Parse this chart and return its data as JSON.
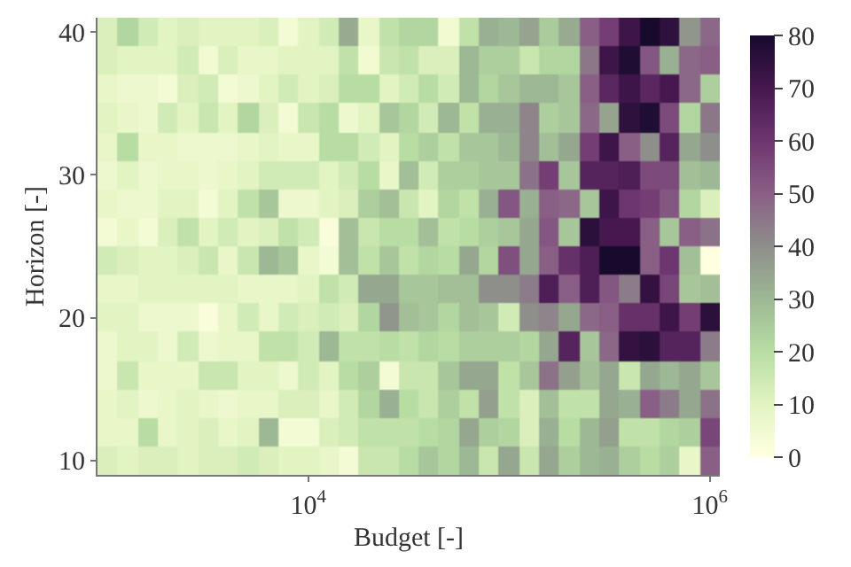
{
  "chart_data": {
    "type": "heatmap",
    "xlabel": "Budget [-]",
    "ylabel": "Horizon [-]",
    "log": "x",
    "x": [
      1000,
      1259,
      1585,
      1995,
      2512,
      3162,
      3981,
      5012,
      6310,
      7943,
      10000,
      12589,
      15849,
      19953,
      25119,
      31623,
      39811,
      50119,
      63096,
      79433,
      100000,
      125893,
      158489,
      199526,
      251189,
      316228,
      398107,
      501187,
      630957,
      794328,
      1000000
    ],
    "y_categories": [
      "40",
      null,
      null,
      null,
      null,
      "30",
      null,
      null,
      null,
      null,
      "20",
      null,
      null,
      null,
      null,
      "10"
    ],
    "cells": [
      [
        12,
        22,
        14,
        10,
        12,
        10,
        10,
        10,
        12,
        4,
        10,
        14,
        33,
        8,
        18,
        22,
        22,
        5,
        18,
        32,
        30,
        35,
        25,
        33,
        50,
        58,
        72,
        80,
        75,
        38,
        48
      ],
      [
        12,
        10,
        10,
        10,
        14,
        5,
        12,
        8,
        8,
        10,
        10,
        10,
        18,
        5,
        16,
        18,
        12,
        12,
        30,
        24,
        24,
        16,
        22,
        22,
        45,
        72,
        78,
        52,
        32,
        48,
        50
      ],
      [
        8,
        6,
        6,
        4,
        12,
        14,
        4,
        6,
        10,
        14,
        10,
        12,
        20,
        20,
        10,
        14,
        20,
        14,
        30,
        22,
        26,
        30,
        30,
        26,
        50,
        65,
        72,
        65,
        70,
        48,
        24
      ],
      [
        10,
        8,
        6,
        14,
        10,
        16,
        10,
        22,
        12,
        4,
        16,
        20,
        6,
        10,
        26,
        22,
        14,
        30,
        18,
        32,
        32,
        42,
        24,
        26,
        48,
        35,
        75,
        78,
        55,
        22,
        45
      ],
      [
        8,
        20,
        8,
        8,
        6,
        6,
        6,
        8,
        10,
        8,
        8,
        20,
        20,
        14,
        10,
        20,
        24,
        18,
        26,
        26,
        30,
        42,
        28,
        34,
        58,
        72,
        50,
        40,
        66,
        34,
        40
      ],
      [
        6,
        10,
        6,
        8,
        8,
        6,
        8,
        10,
        14,
        14,
        14,
        10,
        14,
        20,
        8,
        28,
        14,
        24,
        24,
        26,
        26,
        46,
        58,
        26,
        66,
        66,
        68,
        55,
        55,
        28,
        30
      ],
      [
        8,
        6,
        6,
        10,
        10,
        4,
        10,
        18,
        26,
        6,
        6,
        10,
        12,
        24,
        28,
        16,
        10,
        22,
        18,
        32,
        52,
        32,
        50,
        48,
        26,
        72,
        60,
        58,
        52,
        22,
        12
      ],
      [
        4,
        8,
        4,
        12,
        18,
        10,
        14,
        10,
        12,
        18,
        14,
        2,
        28,
        16,
        20,
        20,
        28,
        18,
        20,
        24,
        26,
        34,
        52,
        26,
        76,
        70,
        70,
        50,
        26,
        50,
        46
      ],
      [
        14,
        12,
        10,
        10,
        12,
        16,
        8,
        16,
        30,
        26,
        8,
        4,
        28,
        18,
        26,
        18,
        22,
        20,
        34,
        22,
        54,
        34,
        50,
        62,
        68,
        80,
        80,
        50,
        60,
        28,
        0
      ],
      [
        8,
        8,
        10,
        10,
        10,
        10,
        10,
        8,
        8,
        8,
        10,
        18,
        14,
        34,
        34,
        26,
        26,
        28,
        28,
        40,
        40,
        44,
        68,
        50,
        68,
        52,
        44,
        74,
        56,
        26,
        28
      ],
      [
        10,
        10,
        6,
        6,
        6,
        2,
        8,
        14,
        8,
        14,
        12,
        14,
        12,
        22,
        38,
        28,
        26,
        22,
        28,
        26,
        14,
        40,
        42,
        34,
        48,
        50,
        62,
        62,
        72,
        58,
        76
      ],
      [
        6,
        10,
        10,
        6,
        14,
        6,
        8,
        8,
        18,
        18,
        14,
        30,
        18,
        18,
        20,
        18,
        22,
        20,
        24,
        24,
        24,
        22,
        34,
        66,
        26,
        48,
        74,
        76,
        66,
        66,
        44
      ],
      [
        6,
        16,
        8,
        8,
        8,
        16,
        16,
        10,
        10,
        6,
        14,
        10,
        20,
        24,
        4,
        16,
        16,
        26,
        34,
        34,
        18,
        26,
        46,
        36,
        28,
        34,
        16,
        34,
        30,
        34,
        26
      ],
      [
        8,
        10,
        6,
        8,
        10,
        8,
        6,
        8,
        8,
        12,
        12,
        8,
        14,
        22,
        32,
        20,
        16,
        24,
        18,
        36,
        18,
        12,
        28,
        18,
        18,
        34,
        32,
        50,
        44,
        34,
        46
      ],
      [
        8,
        8,
        20,
        8,
        10,
        12,
        8,
        10,
        30,
        4,
        4,
        12,
        14,
        18,
        18,
        18,
        20,
        22,
        34,
        24,
        22,
        12,
        32,
        20,
        30,
        36,
        18,
        18,
        22,
        24,
        56
      ],
      [
        12,
        10,
        12,
        12,
        10,
        12,
        12,
        14,
        12,
        10,
        10,
        8,
        4,
        16,
        16,
        20,
        26,
        22,
        30,
        16,
        34,
        16,
        34,
        24,
        30,
        32,
        24,
        20,
        24,
        8,
        50
      ]
    ],
    "xlim": [
      891,
      1122000
    ],
    "xticks": [
      {
        "value": 10000,
        "label": "10$^{4}$"
      },
      {
        "value": 1000000,
        "label": "10$^{6}$"
      }
    ],
    "clim": [
      0,
      80
    ],
    "cticks": [
      0,
      10,
      20,
      30,
      40,
      50,
      60,
      70,
      80
    ]
  }
}
